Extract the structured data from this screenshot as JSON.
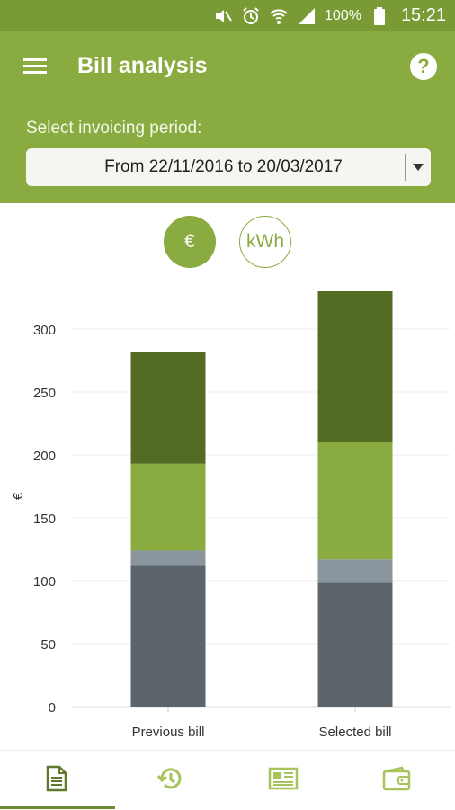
{
  "status_bar": {
    "battery": "100%",
    "time": "15:21",
    "icons": [
      "mute-icon",
      "alarm-icon",
      "wifi-icon",
      "signal-icon",
      "battery-icon"
    ]
  },
  "app_bar": {
    "title": "Bill analysis",
    "menu_icon": "hamburger-menu-icon",
    "help_icon": "help-icon",
    "help_glyph": "?"
  },
  "period": {
    "label": "Select invoicing period:",
    "selected": "From 22/11/2016 to 20/03/2017"
  },
  "unit_toggle": {
    "euro_label": "€",
    "kwh_label": "kWh",
    "active": "euro"
  },
  "colors": {
    "primary": "#89ab40",
    "status_bar": "#7a9a36",
    "series_dark_green": "#546b23",
    "series_light_green": "#89ab40",
    "series_light_gray": "#8b959d",
    "series_dark_gray": "#5c656c"
  },
  "chart_data": {
    "type": "bar",
    "stacked": true,
    "ylabel": "€",
    "ylim": [
      0,
      330
    ],
    "yticks": [
      0,
      50,
      100,
      150,
      200,
      250,
      300
    ],
    "categories": [
      "Previous bill",
      "Selected bill"
    ],
    "series": [
      {
        "values": [
          112,
          99
        ],
        "color": "#5c656c"
      },
      {
        "values": [
          12,
          18
        ],
        "color": "#8b959d"
      },
      {
        "values": [
          69,
          93
        ],
        "color": "#89ab40"
      },
      {
        "values": [
          89,
          120
        ],
        "color": "#546b23"
      }
    ],
    "grid": true
  },
  "bottom_nav": {
    "items": [
      {
        "icon": "invoice-document-icon",
        "active": true
      },
      {
        "icon": "history-icon",
        "active": false
      },
      {
        "icon": "news-icon",
        "active": false
      },
      {
        "icon": "wallet-icon",
        "active": false
      }
    ]
  }
}
